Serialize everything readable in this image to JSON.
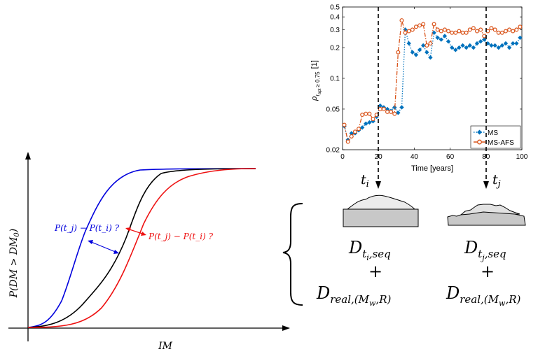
{
  "fragility": {
    "ylabel": "P(DM > DM",
    "ylabel_sub": "0",
    "ylabel_end": ")",
    "xlabel": "IM",
    "blue_annotation": "P(t",
    "blue_annotation_full": "P(t_j) − P(t_i) ?",
    "red_annotation_full": "P(t_j) − P(t_i) ?",
    "colors": {
      "blue": "#0000dd",
      "black": "#000000",
      "red": "#ee1111"
    }
  },
  "chart_data": {
    "type": "line",
    "xlabel": "Time [years]",
    "ylabel": "ρ",
    "ylabel_sub": "r",
    "ylabel_subsub": "apt",
    "ylabel_cond": "≥ 0.75",
    "ylabel_unit": "[1]",
    "yscale": "log",
    "xlim": [
      0,
      100
    ],
    "ylim": [
      0.02,
      0.5
    ],
    "xticks": [
      0,
      20,
      40,
      60,
      80,
      100
    ],
    "yticks": [
      0.02,
      0.05,
      0.1,
      0.2,
      0.3,
      0.4,
      0.5
    ],
    "ytick_labels": [
      "0.02",
      "0.05",
      "0.1",
      "0.2",
      "0.3",
      "0.4",
      "0.5"
    ],
    "legend_position": "bottom-right",
    "series": [
      {
        "name": "MS",
        "color": "#0072bd",
        "marker": "diamond",
        "linestyle": "dotted",
        "x": [
          1,
          3,
          5,
          7,
          9,
          11,
          13,
          15,
          17,
          19,
          21,
          23,
          25,
          27,
          29,
          31,
          33,
          35,
          37,
          39,
          41,
          43,
          45,
          47,
          49,
          51,
          53,
          55,
          57,
          59,
          61,
          63,
          65,
          67,
          69,
          71,
          73,
          75,
          77,
          79,
          81,
          83,
          85,
          87,
          89,
          91,
          93,
          95,
          97,
          99
        ],
        "y": [
          0.034,
          0.025,
          0.029,
          0.029,
          0.031,
          0.033,
          0.036,
          0.037,
          0.038,
          0.042,
          0.054,
          0.052,
          0.05,
          0.048,
          0.052,
          0.046,
          0.052,
          0.3,
          0.22,
          0.18,
          0.17,
          0.19,
          0.21,
          0.18,
          0.16,
          0.28,
          0.25,
          0.24,
          0.26,
          0.23,
          0.2,
          0.19,
          0.2,
          0.21,
          0.2,
          0.21,
          0.2,
          0.22,
          0.23,
          0.24,
          0.22,
          0.21,
          0.21,
          0.2,
          0.21,
          0.22,
          0.2,
          0.22,
          0.22,
          0.25
        ]
      },
      {
        "name": "MS-AFS",
        "color": "#d95319",
        "marker": "circle",
        "linestyle": "dashdot",
        "x": [
          1,
          3,
          5,
          7,
          9,
          11,
          13,
          15,
          17,
          19,
          21,
          23,
          25,
          27,
          29,
          31,
          33,
          35,
          37,
          39,
          41,
          43,
          45,
          47,
          49,
          51,
          53,
          55,
          57,
          59,
          61,
          63,
          65,
          67,
          69,
          71,
          73,
          75,
          77,
          79,
          81,
          83,
          85,
          87,
          89,
          91,
          93,
          95,
          97,
          99
        ],
        "y": [
          0.035,
          0.024,
          0.027,
          0.03,
          0.032,
          0.044,
          0.045,
          0.045,
          0.04,
          0.044,
          0.05,
          0.05,
          0.047,
          0.047,
          0.045,
          0.18,
          0.37,
          0.28,
          0.29,
          0.3,
          0.32,
          0.33,
          0.34,
          0.21,
          0.22,
          0.34,
          0.3,
          0.29,
          0.3,
          0.29,
          0.28,
          0.28,
          0.29,
          0.28,
          0.28,
          0.3,
          0.31,
          0.29,
          0.3,
          0.26,
          0.29,
          0.31,
          0.3,
          0.28,
          0.28,
          0.29,
          0.3,
          0.29,
          0.3,
          0.32
        ]
      }
    ]
  },
  "timeline": {
    "ti_label": "t",
    "ti_sub": "i",
    "tj_label": "t",
    "tj_sub": "j"
  },
  "profiles": {
    "left_D": "D",
    "left_sub": "t",
    "left_subsub": "i",
    "left_subtail": ",seq",
    "right_D": "D",
    "right_sub": "t",
    "right_subsub": "j",
    "right_subtail": ",seq",
    "plus": "+",
    "real_D": "D",
    "real_sub": "real,(M",
    "real_subsub": "w",
    "real_subtail": ",R)"
  }
}
